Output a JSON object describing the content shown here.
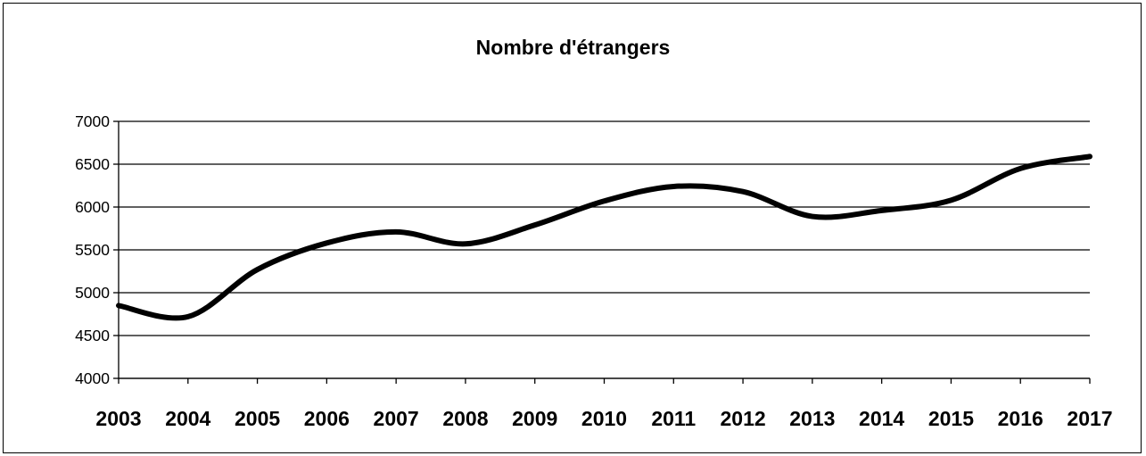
{
  "chart_data": {
    "type": "line",
    "title": "Nombre d'étrangers",
    "xlabel": "",
    "ylabel": "",
    "categories": [
      "2003",
      "2004",
      "2005",
      "2006",
      "2007",
      "2008",
      "2009",
      "2010",
      "2011",
      "2012",
      "2013",
      "2014",
      "2015",
      "2016",
      "2017"
    ],
    "series": [
      {
        "values": [
          4850,
          4720,
          5270,
          5580,
          5710,
          5570,
          5790,
          6070,
          6240,
          6180,
          5890,
          5960,
          6080,
          6450,
          6590
        ]
      }
    ],
    "ylim": [
      4000,
      7000
    ],
    "yticks": [
      "4000",
      "4500",
      "5000",
      "5500",
      "6000",
      "6500",
      "7000"
    ],
    "grid": "horizontal",
    "legend": "none",
    "line_color": "#000000"
  }
}
